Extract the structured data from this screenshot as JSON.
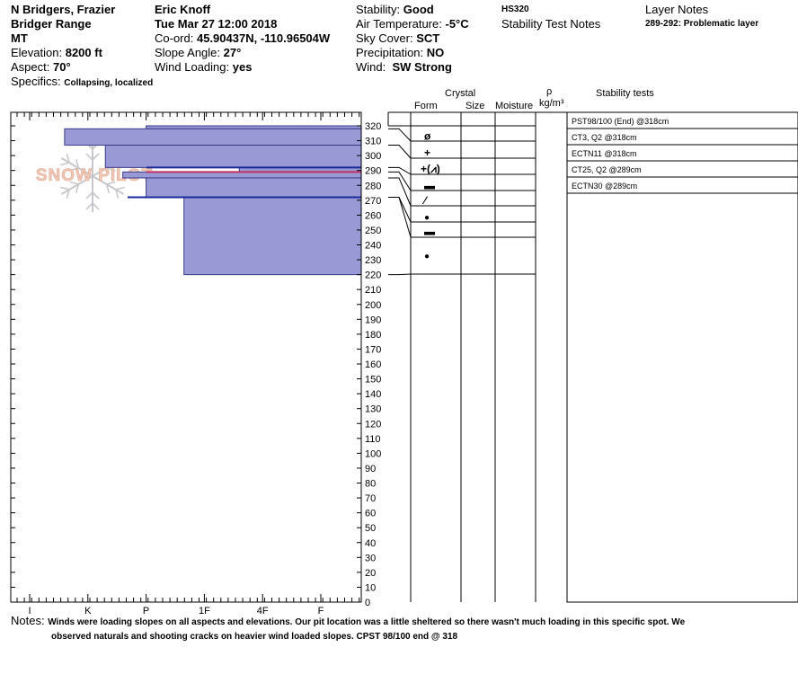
{
  "site": {
    "location": "N Bridgers, Frazier",
    "range": "Bridger Range",
    "state": "MT",
    "elevation_label": "Elevation:",
    "elevation": "8200 ft",
    "aspect_label": "Aspect:",
    "aspect": "70°",
    "specifics_label": "Specifics:",
    "specifics": "Collapsing, localized"
  },
  "observer": {
    "name": "Eric Knoff",
    "datetime": "Tue Mar 27 12:00 2018",
    "coord_label": "Co-ord:",
    "coord": "45.90437N, -110.96504W",
    "slope_label": "Slope Angle:",
    "slope": "27°",
    "wind_loading_label": "Wind Loading:",
    "wind_loading": "yes"
  },
  "conditions": {
    "stability_label": "Stability:",
    "stability": "Good",
    "air_temp_label": "Air Temperature:",
    "air_temp": "-5°C",
    "sky_label": "Sky Cover:",
    "sky": "SCT",
    "precip_label": "Precipitation:",
    "precip": "NO",
    "wind_label": "Wind:",
    "wind": "SW Strong"
  },
  "hs": "HS320",
  "stability_test_notes_label": "Stability Test Notes",
  "layer_notes_label": "Layer Notes",
  "layer_notes": "289-292: Problematic layer",
  "watermark": "SNOW PILOT",
  "columns": {
    "crystal": "Crystal",
    "form": "Form",
    "size": "Size",
    "moisture": "Moisture",
    "rho": "ρ",
    "density_unit": "kg/m³",
    "stability_tests": "Stability tests"
  },
  "notes_label": "Notes:",
  "notes_line1": "Winds were loading slopes on all aspects and elevations. Our pit location was a little sheltered so there wasn't much loading in this specific spot. We",
  "notes_line2": "observed naturals and shooting cracks on heavier wind loaded slopes. CPST 98/100 end @ 318",
  "chart_data": {
    "type": "bar",
    "title": "",
    "hardness_scale": [
      "I",
      "K",
      "P",
      "1F",
      "4F",
      "F"
    ],
    "depth_axis": {
      "min": 0,
      "max": 320,
      "step": 10
    },
    "layers": [
      {
        "top": 320,
        "bottom": 318,
        "hardness_index": 2.0,
        "form": ""
      },
      {
        "top": 318,
        "bottom": 307,
        "hardness_index": 0.6,
        "form": "ø"
      },
      {
        "top": 307,
        "bottom": 292,
        "hardness_index": 1.3,
        "form": "+"
      },
      {
        "top": 292,
        "bottom": 289,
        "hardness_index": 3.6,
        "form": "+(⩘)"
      },
      {
        "top": 289,
        "bottom": 285,
        "hardness_index": 1.6,
        "form": "▬"
      },
      {
        "top": 285,
        "bottom": 272,
        "hardness_index": 2.0,
        "form": "⁄"
      },
      {
        "top": 272,
        "bottom": 220,
        "hardness_index": 2.65,
        "form": "●"
      }
    ],
    "form_symbols": [
      {
        "depth": 313,
        "symbol": "ø"
      },
      {
        "depth": 302,
        "symbol": "+"
      },
      {
        "depth": 291,
        "symbol": "+(⩘)"
      },
      {
        "depth": 280,
        "symbol": "▬"
      },
      {
        "depth": 270,
        "symbol": "⁄"
      },
      {
        "depth": 259,
        "symbol": "●"
      },
      {
        "depth": 249,
        "symbol": "▬"
      },
      {
        "depth": 233,
        "symbol": "●"
      }
    ],
    "highlight_lines": [
      {
        "depth": 292,
        "color": "#1a2a99"
      },
      {
        "depth": 289,
        "color": "#c03060"
      },
      {
        "depth": 272,
        "color": "#1a2a99"
      }
    ],
    "stability_tests": [
      "PST98/100 (End) @318cm",
      "CT3, Q2 @318cm",
      "ECTN11 @318cm",
      "CT25, Q2 @289cm",
      "ECTN30 @289cm"
    ],
    "colors": {
      "fill": "#9999d6",
      "edge": "#3a3a88"
    }
  }
}
